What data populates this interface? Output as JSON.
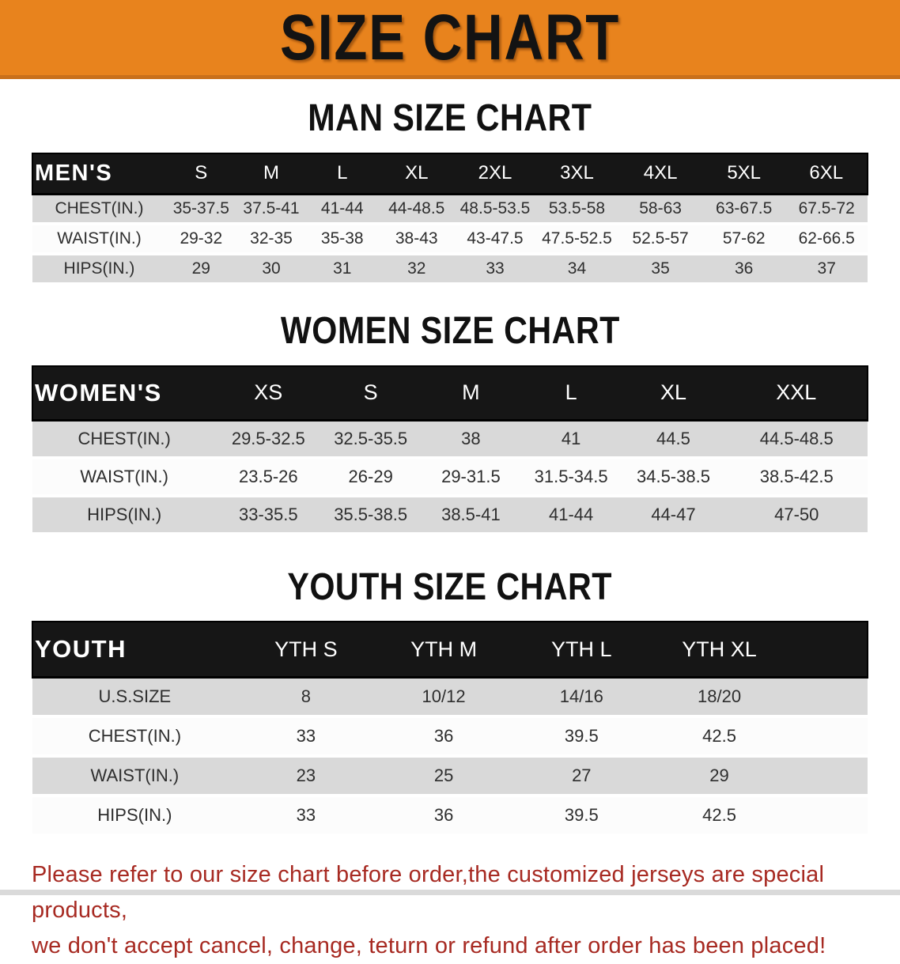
{
  "banner": {
    "title": "SIZE CHART"
  },
  "sections": [
    {
      "id": "men",
      "heading": "MAN SIZE CHART",
      "table": {
        "group_label": "MEN'S",
        "sizes": [
          "S",
          "M",
          "L",
          "XL",
          "2XL",
          "3XL",
          "4XL",
          "5XL",
          "6XL"
        ],
        "rows": [
          {
            "label": "CHEST(IN.)",
            "values": [
              "35-37.5",
              "37.5-41",
              "41-44",
              "44-48.5",
              "48.5-53.5",
              "53.5-58",
              "58-63",
              "63-67.5",
              "67.5-72"
            ]
          },
          {
            "label": "WAIST(IN.)",
            "values": [
              "29-32",
              "32-35",
              "35-38",
              "38-43",
              "43-47.5",
              "47.5-52.5",
              "52.5-57",
              "57-62",
              "62-66.5"
            ]
          },
          {
            "label": "HIPS(IN.)",
            "values": [
              "29",
              "30",
              "31",
              "32",
              "33",
              "34",
              "35",
              "36",
              "37"
            ]
          }
        ]
      }
    },
    {
      "id": "women",
      "heading": "WOMEN SIZE CHART",
      "table": {
        "group_label": "WOMEN'S",
        "sizes": [
          "XS",
          "S",
          "M",
          "L",
          "XL",
          "XXL"
        ],
        "rows": [
          {
            "label": "CHEST(IN.)",
            "values": [
              "29.5-32.5",
              "32.5-35.5",
              "38",
              "41",
              "44.5",
              "44.5-48.5"
            ]
          },
          {
            "label": "WAIST(IN.)",
            "values": [
              "23.5-26",
              "26-29",
              "29-31.5",
              "31.5-34.5",
              "34.5-38.5",
              "38.5-42.5"
            ]
          },
          {
            "label": "HIPS(IN.)",
            "values": [
              "33-35.5",
              "35.5-38.5",
              "38.5-41",
              "41-44",
              "44-47",
              "47-50"
            ]
          }
        ]
      }
    },
    {
      "id": "youth",
      "heading": "YOUTH SIZE CHART",
      "table": {
        "group_label": "YOUTH",
        "sizes": [
          "YTH S",
          "YTH M",
          "YTH L",
          "YTH XL"
        ],
        "rows": [
          {
            "label": "U.S.SIZE",
            "values": [
              "8",
              "10/12",
              "14/16",
              "18/20"
            ]
          },
          {
            "label": "CHEST(IN.)",
            "values": [
              "33",
              "36",
              "39.5",
              "42.5"
            ]
          },
          {
            "label": "WAIST(IN.)",
            "values": [
              "23",
              "25",
              "27",
              "29"
            ]
          },
          {
            "label": "HIPS(IN.)",
            "values": [
              "33",
              "36",
              "39.5",
              "42.5"
            ]
          }
        ]
      }
    }
  ],
  "disclaimer": {
    "lines": [
      "Please refer to our size chart before order,the customized jerseys are special products,",
      "we don't accept cancel, change, teturn or refund after order has been placed!"
    ]
  },
  "colors": {
    "banner_bg": "#E8831D",
    "banner_edge": "#C9701B",
    "header_bar": "#161616",
    "row_grey": "#D9D9D9",
    "row_white": "#FCFCFC",
    "disclaimer_red": "#A72A22"
  }
}
